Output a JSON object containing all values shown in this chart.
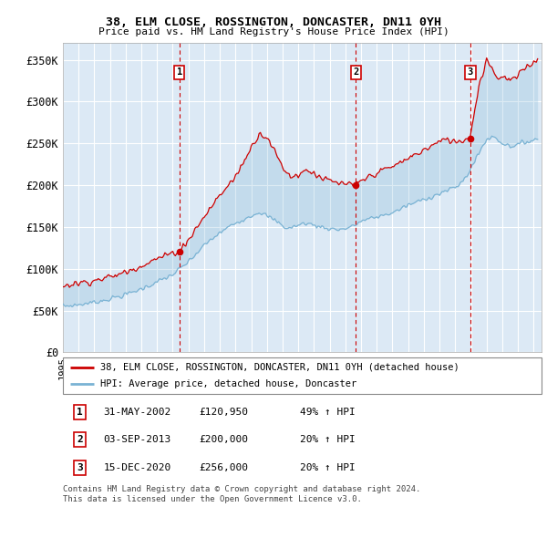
{
  "title1": "38, ELM CLOSE, ROSSINGTON, DONCASTER, DN11 0YH",
  "title2": "Price paid vs. HM Land Registry's House Price Index (HPI)",
  "ylim": [
    0,
    370000
  ],
  "yticks": [
    0,
    50000,
    100000,
    150000,
    200000,
    250000,
    300000,
    350000
  ],
  "ytick_labels": [
    "£0",
    "£50K",
    "£100K",
    "£150K",
    "£200K",
    "£250K",
    "£300K",
    "£350K"
  ],
  "xlim_start": 1995.0,
  "xlim_end": 2025.5,
  "sale_dates": [
    2002.416,
    2013.671,
    2020.958
  ],
  "sale_prices": [
    120950,
    200000,
    256000
  ],
  "sale_labels": [
    "1",
    "2",
    "3"
  ],
  "legend_line1": "38, ELM CLOSE, ROSSINGTON, DONCASTER, DN11 0YH (detached house)",
  "legend_line2": "HPI: Average price, detached house, Doncaster",
  "table_rows": [
    [
      "1",
      "31-MAY-2002",
      "£120,950",
      "49% ↑ HPI"
    ],
    [
      "2",
      "03-SEP-2013",
      "£200,000",
      "20% ↑ HPI"
    ],
    [
      "3",
      "15-DEC-2020",
      "£256,000",
      "20% ↑ HPI"
    ]
  ],
  "footnote": "Contains HM Land Registry data © Crown copyright and database right 2024.\nThis data is licensed under the Open Government Licence v3.0.",
  "bg_color": "#dce9f5",
  "grid_color": "#ffffff",
  "red_color": "#cc0000",
  "blue_color": "#7ab3d4"
}
